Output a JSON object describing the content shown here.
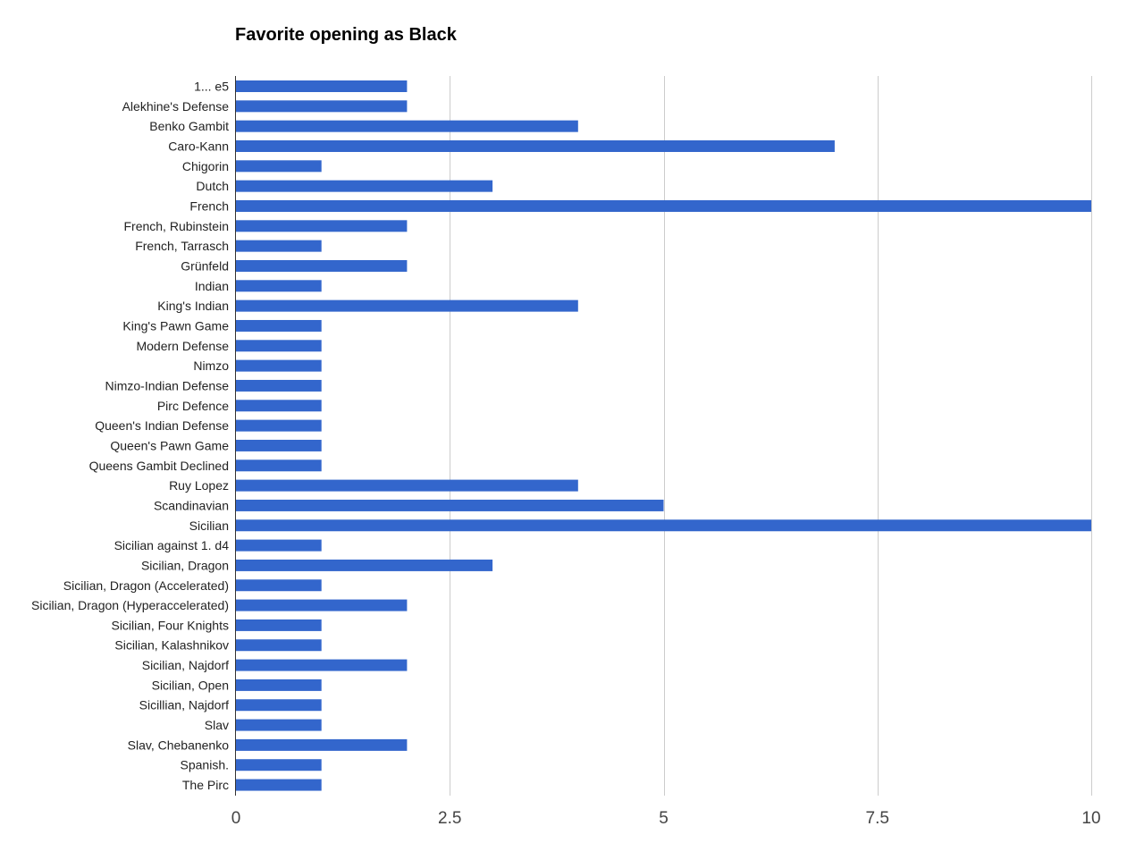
{
  "chart_data": {
    "type": "bar",
    "orientation": "horizontal",
    "title": "Favorite opening as Black",
    "xlabel": "",
    "ylabel": "",
    "xlim": [
      0,
      10
    ],
    "x_ticks": [
      0,
      2.5,
      5,
      7.5,
      10
    ],
    "x_tick_labels": [
      "0",
      "2.5",
      "5",
      "7.5",
      "10"
    ],
    "grid": true,
    "legend": "none",
    "bar_color": "#3366cc",
    "gridline_color": "#cccccc",
    "categories": [
      "1... e5",
      "Alekhine's Defense",
      "Benko Gambit",
      "Caro-Kann",
      "Chigorin",
      "Dutch",
      "French",
      "French, Rubinstein",
      "French, Tarrasch",
      "Grünfeld",
      "Indian",
      "King's Indian",
      "King's Pawn Game",
      "Modern Defense",
      "Nimzo",
      "Nimzo-Indian Defense",
      "Pirc Defence",
      "Queen's Indian Defense",
      "Queen's Pawn Game",
      "Queens Gambit Declined",
      "Ruy Lopez",
      "Scandinavian",
      "Sicilian",
      "Sicilian against 1. d4",
      "Sicilian, Dragon",
      "Sicilian, Dragon (Accelerated)",
      "Sicilian, Dragon (Hyperaccelerated)",
      "Sicilian, Four Knights",
      "Sicilian, Kalashnikov",
      "Sicilian, Najdorf",
      "Sicilian, Open",
      "Sicillian, Najdorf",
      "Slav",
      "Slav, Chebanenko",
      "Spanish.",
      "The Pirc"
    ],
    "values": [
      2,
      2,
      4,
      7,
      1,
      3,
      10,
      2,
      1,
      2,
      1,
      4,
      1,
      1,
      1,
      1,
      1,
      1,
      1,
      1,
      4,
      5,
      10,
      1,
      3,
      1,
      2,
      1,
      1,
      2,
      1,
      1,
      1,
      2,
      1,
      1
    ]
  }
}
